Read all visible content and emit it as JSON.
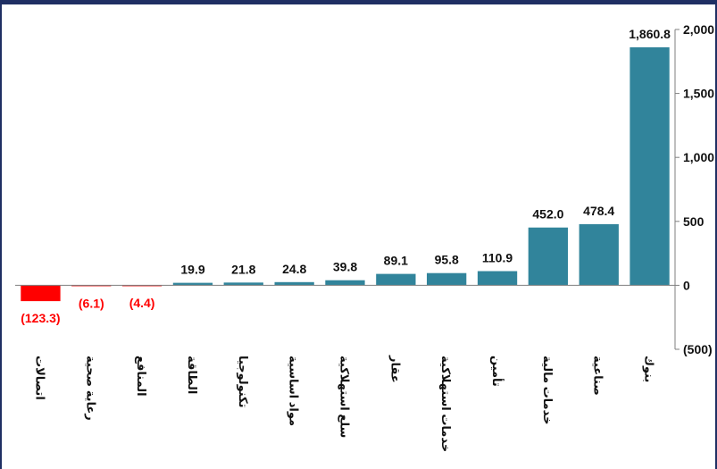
{
  "chart_data": {
    "type": "bar",
    "categories": [
      "اتصالات",
      "رعاية صحية",
      "المنافع",
      "الطاقة",
      "تكنولوجيا",
      "مواد اساسية",
      "سلع استهلاكية",
      "عقار",
      "خدمات استهلاكية",
      "تأمين",
      "خدمات مالية",
      "صناعية",
      "بنوك"
    ],
    "values": [
      -123.3,
      -6.1,
      -4.4,
      19.9,
      21.8,
      24.8,
      39.8,
      89.1,
      95.8,
      110.9,
      452.0,
      478.4,
      1860.8
    ],
    "data_labels": [
      "(123.3)",
      "(6.1)",
      "(4.4)",
      "19.9",
      "21.8",
      "24.8",
      "39.8",
      "89.1",
      "95.8",
      "110.9",
      "452.0",
      "478.4",
      "1,860.8"
    ],
    "ylim": [
      -500,
      2000
    ],
    "yticks": [
      -500,
      0,
      500,
      1000,
      1500,
      2000
    ],
    "ytick_labels": [
      "(500)",
      "0",
      "500",
      "1,000",
      "1,500",
      "2,000"
    ],
    "y_axis_position": "right",
    "grid": false,
    "title": "",
    "xlabel": "",
    "ylabel": "",
    "colors": {
      "positive": "#31849b",
      "negative": "#ff0000",
      "positive_label": "#111111",
      "negative_label": "#ff0000",
      "border": "#1f2f63"
    }
  }
}
